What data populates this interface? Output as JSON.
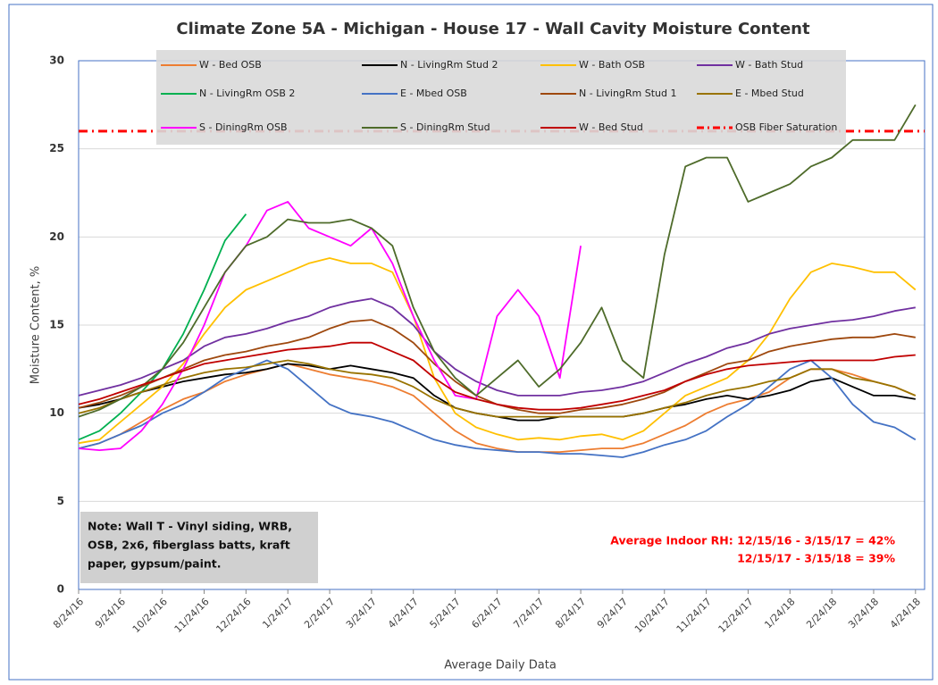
{
  "chart_data": {
    "type": "line",
    "title": "Climate Zone 5A - Michigan - House 17 - Wall Cavity Moisture Content",
    "x_label": "Average Daily Data",
    "y_label": "Moisture Content, %",
    "ylim": [
      0,
      30
    ],
    "yticks": [
      0,
      5,
      10,
      15,
      20,
      25,
      30
    ],
    "grid": true,
    "categories": [
      "8/24/16",
      null,
      "9/24/16",
      null,
      "10/24/16",
      null,
      "11/24/16",
      null,
      "12/24/16",
      null,
      "1/24/17",
      null,
      "2/24/17",
      null,
      "3/24/17",
      null,
      "4/24/17",
      null,
      "5/24/17",
      null,
      "6/24/17",
      null,
      "7/24/17",
      null,
      "8/24/17",
      null,
      "9/24/17",
      null,
      "10/24/17",
      null,
      "11/24/17",
      null,
      "12/24/17",
      null,
      "1/24/18",
      null,
      "2/24/18",
      null,
      "3/24/18",
      null,
      "4/24/18"
    ],
    "series": [
      {
        "name": "W - Bed OSB",
        "color": "#ed7d31",
        "values": [
          8.0,
          8.3,
          8.8,
          9.5,
          10.2,
          10.8,
          11.2,
          11.8,
          12.2,
          12.5,
          12.8,
          12.5,
          12.2,
          12.0,
          11.8,
          11.5,
          11.0,
          10.0,
          9.0,
          8.3,
          8.0,
          7.8,
          7.8,
          7.8,
          7.9,
          8.0,
          8.0,
          8.3,
          8.8,
          9.3,
          10.0,
          10.5,
          10.8,
          11.2,
          12.0,
          12.5,
          12.5,
          12.2,
          11.8,
          11.5,
          11.0
        ]
      },
      {
        "name": "N - LivingRm Stud 2",
        "color": "#000000",
        "values": [
          10.3,
          10.5,
          10.8,
          11.2,
          11.5,
          11.8,
          12.0,
          12.2,
          12.3,
          12.5,
          12.8,
          12.7,
          12.5,
          12.7,
          12.5,
          12.3,
          12.0,
          11.0,
          10.3,
          10.0,
          9.8,
          9.6,
          9.6,
          9.8,
          9.8,
          9.8,
          9.8,
          10.0,
          10.3,
          10.5,
          10.8,
          11.0,
          10.8,
          11.0,
          11.3,
          11.8,
          12.0,
          11.5,
          11.0,
          11.0,
          10.8
        ]
      },
      {
        "name": "W - Bath OSB",
        "color": "#ffc000",
        "values": [
          8.3,
          8.5,
          9.5,
          10.5,
          11.5,
          12.8,
          14.5,
          16.0,
          17.0,
          17.5,
          18.0,
          18.5,
          18.8,
          18.5,
          18.5,
          18.0,
          15.5,
          12.0,
          10.0,
          9.2,
          8.8,
          8.5,
          8.6,
          8.5,
          8.7,
          8.8,
          8.5,
          9.0,
          10.0,
          11.0,
          11.5,
          12.0,
          13.0,
          14.5,
          16.5,
          18.0,
          18.5,
          18.3,
          18.0,
          18.0,
          17.0
        ]
      },
      {
        "name": "W - Bath Stud",
        "color": "#7030a0",
        "values": [
          11.0,
          11.3,
          11.6,
          12.0,
          12.5,
          13.0,
          13.8,
          14.3,
          14.5,
          14.8,
          15.2,
          15.5,
          16.0,
          16.3,
          16.5,
          16.0,
          15.0,
          13.5,
          12.5,
          11.8,
          11.3,
          11.0,
          11.0,
          11.0,
          11.2,
          11.3,
          11.5,
          11.8,
          12.3,
          12.8,
          13.2,
          13.7,
          14.0,
          14.5,
          14.8,
          15.0,
          15.2,
          15.3,
          15.5,
          15.8,
          16.0
        ]
      },
      {
        "name": "N - LivingRm OSB 2",
        "color": "#00b050",
        "values": [
          8.5,
          9.0,
          10.0,
          11.2,
          12.5,
          14.5,
          17.0,
          19.8,
          21.3,
          null,
          null,
          null,
          null,
          null,
          null,
          null,
          null,
          null,
          null,
          null,
          null,
          null,
          null,
          null,
          null,
          null,
          null,
          null,
          null,
          null,
          null,
          null,
          null,
          null,
          null,
          null,
          null,
          null,
          null,
          null,
          null
        ]
      },
      {
        "name": "E - Mbed OSB",
        "color": "#4472c4",
        "values": [
          8.0,
          8.3,
          8.8,
          9.3,
          10.0,
          10.5,
          11.2,
          12.0,
          12.5,
          13.0,
          12.5,
          11.5,
          10.5,
          10.0,
          9.8,
          9.5,
          9.0,
          8.5,
          8.2,
          8.0,
          7.9,
          7.8,
          7.8,
          7.7,
          7.7,
          7.6,
          7.5,
          7.8,
          8.2,
          8.5,
          9.0,
          9.8,
          10.5,
          11.5,
          12.5,
          13.0,
          12.0,
          10.5,
          9.5,
          9.2,
          8.5
        ]
      },
      {
        "name": "N - LivingRm Stud 1",
        "color": "#9e480e",
        "values": [
          10.3,
          10.6,
          11.0,
          11.5,
          12.0,
          12.5,
          13.0,
          13.3,
          13.5,
          13.8,
          14.0,
          14.3,
          14.8,
          15.2,
          15.3,
          14.8,
          14.0,
          12.8,
          11.8,
          11.0,
          10.5,
          10.2,
          10.0,
          10.0,
          10.2,
          10.3,
          10.5,
          10.8,
          11.2,
          11.8,
          12.3,
          12.8,
          13.0,
          13.5,
          13.8,
          14.0,
          14.2,
          14.3,
          14.3,
          14.5,
          14.3
        ]
      },
      {
        "name": "E - Mbed Stud",
        "color": "#997300",
        "values": [
          10.0,
          10.3,
          10.8,
          11.2,
          11.6,
          12.0,
          12.3,
          12.5,
          12.6,
          12.8,
          13.0,
          12.8,
          12.5,
          12.3,
          12.2,
          12.0,
          11.5,
          10.8,
          10.3,
          10.0,
          9.8,
          9.8,
          9.8,
          9.8,
          9.8,
          9.8,
          9.8,
          10.0,
          10.3,
          10.6,
          11.0,
          11.3,
          11.5,
          11.8,
          12.0,
          12.5,
          12.5,
          12.0,
          11.8,
          11.5,
          11.0
        ]
      },
      {
        "name": "S - DiningRm OSB",
        "color": "#ff00ff",
        "values": [
          8.0,
          7.9,
          8.0,
          9.0,
          10.5,
          12.5,
          15.0,
          18.0,
          19.5,
          21.5,
          22.0,
          20.5,
          20.0,
          19.5,
          20.5,
          18.5,
          15.5,
          13.0,
          11.0,
          10.8,
          15.5,
          17.0,
          15.5,
          12.0,
          19.5,
          null,
          null,
          null,
          null,
          null,
          null,
          null,
          null,
          null,
          null,
          null,
          null,
          null,
          null,
          null,
          null
        ]
      },
      {
        "name": "S - DiningRm Stud",
        "color": "#4e6b2a",
        "values": [
          9.8,
          10.2,
          10.8,
          11.5,
          12.5,
          14.0,
          16.0,
          18.0,
          19.5,
          20.0,
          21.0,
          20.8,
          20.8,
          21.0,
          20.5,
          19.5,
          16.0,
          13.5,
          12.0,
          11.0,
          12.0,
          13.0,
          11.5,
          12.5,
          14.0,
          16.0,
          13.0,
          12.0,
          19.0,
          24.0,
          24.5,
          24.5,
          22.0,
          22.5,
          23.0,
          24.0,
          24.5,
          25.5,
          25.5,
          25.5,
          27.5
        ]
      },
      {
        "name": "W - Bed Stud",
        "color": "#c00000",
        "values": [
          10.5,
          10.8,
          11.2,
          11.6,
          12.0,
          12.4,
          12.8,
          13.0,
          13.2,
          13.4,
          13.6,
          13.7,
          13.8,
          14.0,
          14.0,
          13.5,
          13.0,
          12.0,
          11.2,
          10.8,
          10.5,
          10.3,
          10.2,
          10.2,
          10.3,
          10.5,
          10.7,
          11.0,
          11.3,
          11.8,
          12.2,
          12.5,
          12.7,
          12.8,
          12.9,
          13.0,
          13.0,
          13.0,
          13.0,
          13.2,
          13.3
        ]
      }
    ],
    "reference_lines": [
      {
        "name": "OSB Fiber Saturation",
        "color": "#ff0000",
        "value": 26
      }
    ],
    "note": [
      "Note: Wall T - Vinyl siding, WRB,",
      "OSB, 2x6, fiberglass batts, kraft",
      "paper, gypsum/paint."
    ],
    "annotation": [
      "Average Indoor RH: 12/15/16 - 3/15/17 = 42%",
      "12/15/17 - 3/15/18 = 39%"
    ]
  }
}
